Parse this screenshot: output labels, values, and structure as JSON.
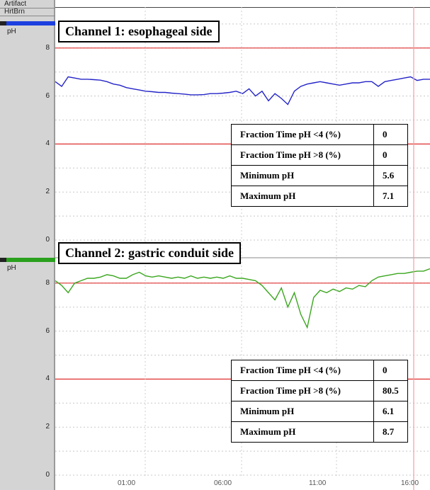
{
  "tracks": [
    {
      "label": "Artifact"
    },
    {
      "label": "HrtBrn"
    }
  ],
  "channel1": {
    "title": "Channel 1: esophageal side",
    "unit": "pH",
    "bar_color": "#1c3fe0",
    "line_color": "#2424c8",
    "y_ticks": [
      "8",
      "6",
      "4",
      "2",
      "0"
    ],
    "stats": [
      {
        "label": "Fraction  Time pH <4 (%)",
        "value": "0"
      },
      {
        "label": "Fraction  Time pH >8 (%)",
        "value": "0"
      },
      {
        "label": "Minimum pH",
        "value": "5.6"
      },
      {
        "label": "Maximum pH",
        "value": "7.1"
      }
    ]
  },
  "channel2": {
    "title": "Channel 2: gastric conduit side",
    "unit": "pH",
    "bar_color": "#2aa01e",
    "line_color": "#3aa61e",
    "y_ticks": [
      "8",
      "6",
      "4",
      "2",
      "0"
    ],
    "stats": [
      {
        "label": "Fraction  Time pH <4 (%)",
        "value": "0"
      },
      {
        "label": "Fraction  Time pH >8 (%)",
        "value": "80.5"
      },
      {
        "label": "Minimum pH",
        "value": "6.1"
      },
      {
        "label": "Maximum pH",
        "value": "8.7"
      }
    ]
  },
  "x_axis": {
    "ticks": [
      "01:00",
      "06:00",
      "11:00",
      "16:00"
    ]
  },
  "reference_line_color": "#e03030",
  "chart_data": [
    {
      "type": "line",
      "title": "Channel 1: esophageal side",
      "ylabel": "pH",
      "ylim": [
        0,
        9
      ],
      "reference_lines": [
        4,
        8
      ],
      "x": [
        0,
        1,
        2,
        3,
        4,
        5,
        6,
        7,
        8,
        9,
        10,
        11,
        12,
        13,
        14,
        15,
        16,
        17,
        18,
        19,
        20,
        21,
        22,
        23,
        24,
        25,
        26,
        27,
        28,
        29,
        30,
        31,
        32,
        33,
        34,
        35,
        36,
        37,
        38,
        39,
        40,
        41,
        42,
        43,
        44,
        45,
        46,
        47,
        48,
        49,
        50,
        51,
        52,
        53,
        54,
        55,
        56,
        57,
        58
      ],
      "values": [
        6.6,
        6.4,
        6.8,
        6.75,
        6.7,
        6.7,
        6.68,
        6.66,
        6.6,
        6.5,
        6.45,
        6.35,
        6.3,
        6.25,
        6.2,
        6.18,
        6.15,
        6.15,
        6.12,
        6.1,
        6.08,
        6.05,
        6.05,
        6.06,
        6.1,
        6.1,
        6.12,
        6.15,
        6.2,
        6.1,
        6.3,
        6.0,
        6.2,
        5.8,
        6.1,
        5.9,
        5.65,
        6.2,
        6.4,
        6.5,
        6.55,
        6.6,
        6.55,
        6.5,
        6.45,
        6.5,
        6.55,
        6.55,
        6.6,
        6.6,
        6.4,
        6.6,
        6.65,
        6.7,
        6.75,
        6.8,
        6.65,
        6.7,
        6.7
      ]
    },
    {
      "type": "line",
      "title": "Channel 2: gastric conduit side",
      "ylabel": "pH",
      "ylim": [
        0,
        9
      ],
      "reference_lines": [
        4,
        8
      ],
      "x": [
        0,
        1,
        2,
        3,
        4,
        5,
        6,
        7,
        8,
        9,
        10,
        11,
        12,
        13,
        14,
        15,
        16,
        17,
        18,
        19,
        20,
        21,
        22,
        23,
        24,
        25,
        26,
        27,
        28,
        29,
        30,
        31,
        32,
        33,
        34,
        35,
        36,
        37,
        38,
        39,
        40,
        41,
        42,
        43,
        44,
        45,
        46,
        47,
        48,
        49,
        50,
        51,
        52,
        53,
        54,
        55,
        56,
        57,
        58
      ],
      "values": [
        8.1,
        7.9,
        7.6,
        8.0,
        8.1,
        8.2,
        8.2,
        8.25,
        8.35,
        8.3,
        8.2,
        8.2,
        8.35,
        8.45,
        8.3,
        8.25,
        8.3,
        8.25,
        8.2,
        8.25,
        8.2,
        8.3,
        8.2,
        8.25,
        8.2,
        8.25,
        8.2,
        8.3,
        8.2,
        8.2,
        8.15,
        8.1,
        7.9,
        7.6,
        7.3,
        7.8,
        7.0,
        7.6,
        6.7,
        6.15,
        7.4,
        7.7,
        7.6,
        7.75,
        7.65,
        7.8,
        7.75,
        7.9,
        7.85,
        8.1,
        8.25,
        8.3,
        8.35,
        8.4,
        8.4,
        8.45,
        8.5,
        8.5,
        8.6
      ]
    }
  ]
}
